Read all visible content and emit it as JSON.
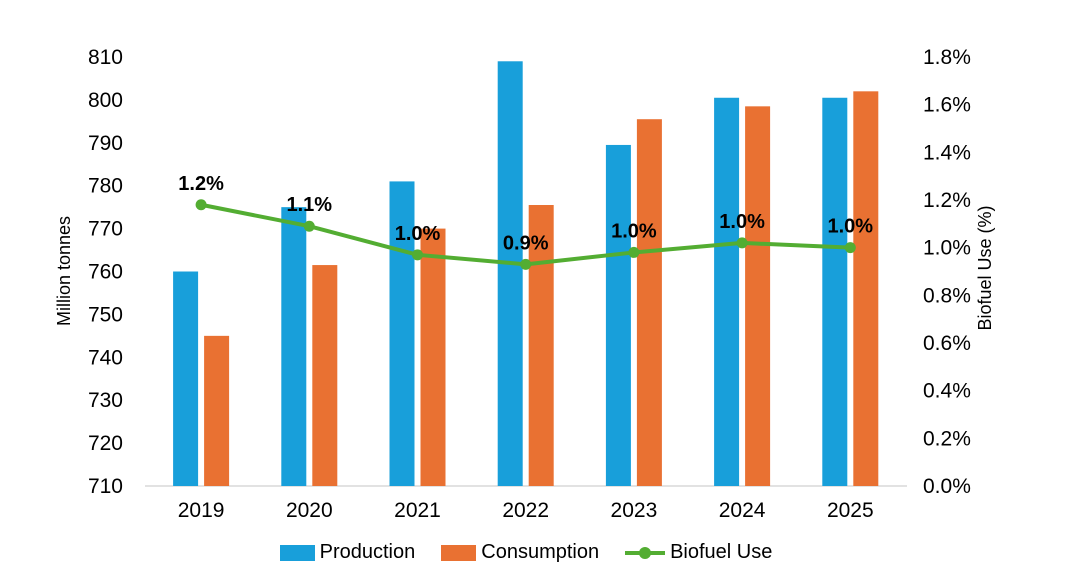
{
  "chart_data": {
    "type": "combo-bar-line",
    "title": "",
    "categories": [
      "2019",
      "2020",
      "2021",
      "2022",
      "2023",
      "2024",
      "2025"
    ],
    "series": [
      {
        "name": "Production",
        "chart": "bar",
        "axis": "left",
        "color": "#189FDA",
        "values": [
          760,
          775,
          781,
          809,
          789.5,
          800.5,
          800.5
        ]
      },
      {
        "name": "Consumption",
        "chart": "bar",
        "axis": "left",
        "color": "#E97132",
        "values": [
          745,
          761.5,
          770,
          775.5,
          795.5,
          798.5,
          802
        ]
      },
      {
        "name": "Biofuel Use",
        "chart": "line",
        "axis": "right",
        "color": "#53AD32",
        "values": [
          1.18,
          1.09,
          0.97,
          0.93,
          0.98,
          1.02,
          1.0
        ],
        "point_labels": [
          "1.2%",
          "1.1%",
          "1.0%",
          "0.9%",
          "1.0%",
          "1.0%",
          "1.0%"
        ]
      }
    ],
    "left_axis": {
      "title": "Million tonnes",
      "min": 710,
      "max": 810,
      "step": 10,
      "ticks": [
        "810",
        "800",
        "790",
        "780",
        "770",
        "760",
        "750",
        "740",
        "730",
        "720",
        "710"
      ]
    },
    "right_axis": {
      "title": "Biofuel Use (%)",
      "min": 0.0,
      "max": 1.8,
      "step": 0.2,
      "ticks": [
        "1.8%",
        "1.6%",
        "1.4%",
        "1.2%",
        "1.0%",
        "0.8%",
        "0.6%",
        "0.4%",
        "0.2%",
        "0.0%"
      ]
    },
    "legend": {
      "position": "bottom",
      "entries": [
        "Production",
        "Consumption",
        "Biofuel Use"
      ]
    },
    "grid": false,
    "background": "#FFFFFF",
    "axis_line_color": "#D9D9D9",
    "label_color": "#000000"
  }
}
